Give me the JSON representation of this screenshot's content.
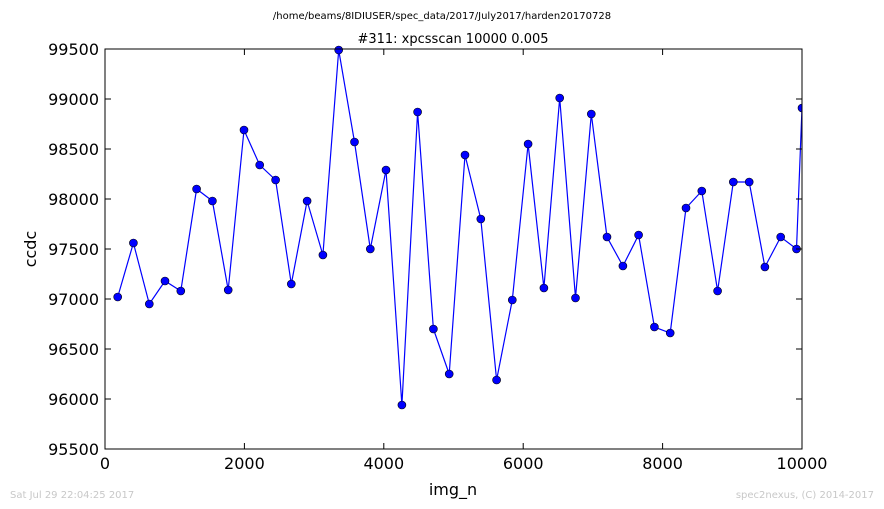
{
  "page": {
    "suptitle": "/home/beams/8IDIUSER/spec_data/2017/July2017/harden20170728",
    "timestamp": "Sat Jul 29 22:04:25 2017",
    "credit": "spec2nexus, (C) 2014-2017"
  },
  "colors": {
    "series": "#0000ff",
    "axes": "#000000",
    "footer": "#c8c8c8"
  },
  "chart_data": {
    "type": "line",
    "title": "#311: xpcsscan 10000 0.005",
    "xlabel": "img_n",
    "ylabel": "ccdc",
    "xlim": [
      0,
      10000
    ],
    "ylim": [
      95500,
      99500
    ],
    "xticks": [
      0,
      2000,
      4000,
      6000,
      8000,
      10000
    ],
    "yticks": [
      95500,
      96000,
      96500,
      97000,
      97500,
      98000,
      98500,
      99000,
      99500
    ],
    "grid": false,
    "marker": "circle",
    "series": [
      {
        "x": [
          182,
          408,
          635,
          861,
          1088,
          1314,
          1541,
          1767,
          1994,
          2220,
          2447,
          2673,
          2900,
          3126,
          3353,
          3579,
          3806,
          4032,
          4259,
          4485,
          4712,
          4938,
          5165,
          5391,
          5618,
          5844,
          6071,
          6297,
          6524,
          6750,
          6977,
          7203,
          7430,
          7656,
          7883,
          8109,
          8336,
          8562,
          8789,
          9015,
          9242,
          9468,
          9695,
          9921,
          10000
        ],
        "y": [
          97020,
          97560,
          96950,
          97180,
          97080,
          98100,
          97980,
          97090,
          98690,
          98340,
          98190,
          97150,
          97980,
          97440,
          99490,
          98570,
          97500,
          98290,
          95940,
          98870,
          96700,
          96250,
          98440,
          97800,
          96190,
          96990,
          98550,
          97110,
          99010,
          97010,
          98850,
          97620,
          97330,
          97640,
          96720,
          96660,
          97910,
          98080,
          97080,
          98170,
          98170,
          97320,
          97620,
          97500,
          98910
        ]
      }
    ]
  }
}
